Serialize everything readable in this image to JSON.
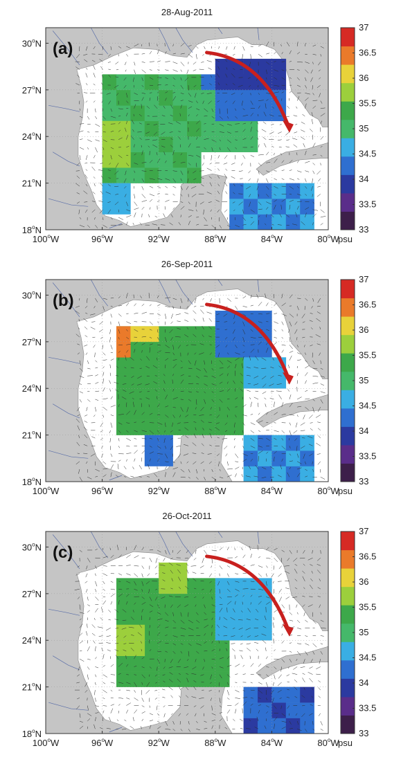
{
  "panels": [
    {
      "id": "a",
      "title": "28-Aug-2011",
      "letter": "(a)"
    },
    {
      "id": "b",
      "title": "26-Sep-2011",
      "letter": "(b)"
    },
    {
      "id": "c",
      "title": "26-Oct-2011",
      "letter": "(c)"
    }
  ],
  "axes": {
    "lon_ticks": [
      {
        "value": -100,
        "deg": "100",
        "hem": "W"
      },
      {
        "value": -96,
        "deg": "96",
        "hem": "W"
      },
      {
        "value": -92,
        "deg": "92",
        "hem": "W"
      },
      {
        "value": -88,
        "deg": "88",
        "hem": "W"
      },
      {
        "value": -84,
        "deg": "84",
        "hem": "W"
      },
      {
        "value": -80,
        "deg": "80",
        "hem": "W"
      }
    ],
    "lat_ticks": [
      {
        "value": 18,
        "deg": "18",
        "hem": "N"
      },
      {
        "value": 21,
        "deg": "21",
        "hem": "N"
      },
      {
        "value": 24,
        "deg": "24",
        "hem": "N"
      },
      {
        "value": 27,
        "deg": "27",
        "hem": "N"
      },
      {
        "value": 30,
        "deg": "30",
        "hem": "N"
      }
    ],
    "lon_range": [
      -100,
      -80
    ],
    "lat_range": [
      18,
      31
    ],
    "degree_symbol": "o"
  },
  "colorbar": {
    "ticks": [
      "37",
      "36.5",
      "36",
      "35.5",
      "35",
      "34.5",
      "34",
      "33.5",
      "33"
    ],
    "min": 33,
    "max": 37,
    "unit": "psu",
    "colors": [
      "#3d1f4a",
      "#5a2d8a",
      "#2b3aa0",
      "#2f6fd0",
      "#3aaee3",
      "#45b86a",
      "#3da84a",
      "#9ccf3c",
      "#e8d23a",
      "#ea7a2a",
      "#d62a24"
    ]
  },
  "colors": {
    "land": "#c5c5c5",
    "ocean": "#ffffff",
    "river": "#5a6ea8",
    "arrow": "#c8201e",
    "vectors": "#2a2a2a"
  }
}
